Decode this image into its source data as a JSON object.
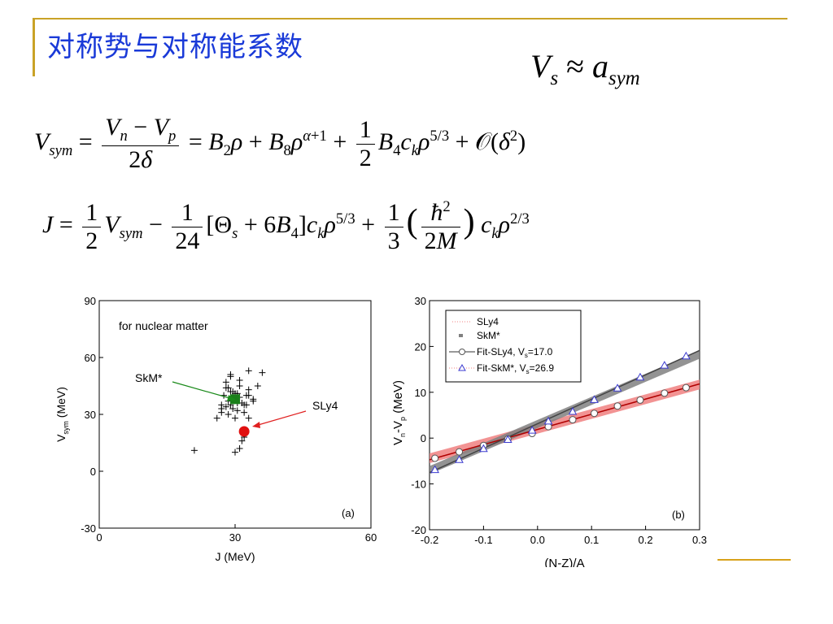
{
  "slide": {
    "title": "对称势与对称能系数"
  },
  "equations": {
    "vs_approx": "Vs ≈ asym",
    "vsym": "Vsym = (Vn − Vp)/2δ = B2ρ + B8ρ^(α+1) + ½B4ckρ^(5/3) + O(δ²)",
    "j": "J = ½Vsym − (1/24)[Θs + 6B4]ckρ^(5/3) + ⅓(ħ²/2M)ckρ^(2/3)"
  },
  "chart_data": [
    {
      "type": "scatter",
      "panel_label": "(a)",
      "annotation": "for nuclear matter",
      "xlabel": "J (MeV)",
      "ylabel": "Vsym (MeV)",
      "xlim": [
        0,
        60
      ],
      "ylim": [
        -30,
        90
      ],
      "xticks": [
        0,
        30,
        60
      ],
      "yticks": [
        -30,
        0,
        30,
        60,
        90
      ],
      "series": [
        {
          "marker": "cross",
          "color": "#000000",
          "x": [
            21,
            26,
            27,
            27.5,
            28,
            28,
            28.5,
            29,
            29,
            29.5,
            30,
            30,
            30.5,
            31,
            31,
            31.5,
            32,
            32,
            32.5,
            33,
            33,
            34,
            35,
            36,
            27,
            28.5,
            29.5,
            30.5,
            31.5,
            32.5,
            29,
            30,
            31,
            32,
            33,
            30,
            28,
            27,
            34,
            29,
            31,
            33,
            30.5,
            28.5,
            29.5
          ],
          "y": [
            11,
            28,
            33,
            40,
            44,
            47,
            30,
            35,
            51,
            42,
            10,
            38,
            41,
            48,
            12,
            16,
            18,
            31,
            35,
            43,
            53,
            38,
            45,
            52,
            35,
            37,
            33,
            32,
            36,
            40,
            42,
            41,
            39,
            35,
            40,
            28,
            34,
            31,
            37,
            50,
            45,
            28,
            36,
            44,
            38
          ]
        },
        {
          "name": "SkM*",
          "marker": "square",
          "color": "#1a7f1a",
          "x": [
            30
          ],
          "y": [
            38
          ]
        },
        {
          "name": "SLy4",
          "marker": "circle",
          "color": "#e01010",
          "x": [
            32
          ],
          "y": [
            21
          ]
        }
      ],
      "arrows": [
        {
          "label": "SkM*",
          "color": "#1a8a1a"
        },
        {
          "label": "SLy4",
          "color": "#e02020"
        }
      ]
    },
    {
      "type": "line",
      "panel_label": "(b)",
      "xlabel": "(N-Z)/A",
      "ylabel": "Vn-Vp (MeV)",
      "xlim": [
        -0.2,
        0.3
      ],
      "ylim": [
        -20,
        30
      ],
      "xticks": [
        -0.2,
        -0.1,
        0.0,
        0.1,
        0.2,
        0.3
      ],
      "yticks": [
        -20,
        -10,
        0,
        10,
        20,
        30
      ],
      "legend_position": "top-left",
      "series": [
        {
          "name": "SLy4",
          "color": "#f08080",
          "style": "band",
          "x": [
            -0.2,
            0.3
          ],
          "y": [
            -4.4,
            11.7
          ]
        },
        {
          "name": "SkM*",
          "color": "#808080",
          "style": "band",
          "x": [
            -0.2,
            0.3
          ],
          "y": [
            -7.0,
            18.2
          ]
        },
        {
          "name": "Fit-SLy4, Vs=17.0",
          "color": "#555555",
          "line_color": "#b00000",
          "marker": "open-circle",
          "x": [
            -0.19,
            -0.145,
            -0.1,
            -0.055,
            -0.01,
            0.02,
            0.065,
            0.105,
            0.148,
            0.19,
            0.235,
            0.275
          ],
          "y": [
            -4.4,
            -3.0,
            -1.6,
            -0.2,
            1.0,
            2.5,
            4.0,
            5.4,
            7.0,
            8.3,
            9.8,
            11.0
          ]
        },
        {
          "name": "Fit-SkM*, Vs=26.9",
          "color": "#3a3ad0",
          "line_color": "#444444",
          "marker": "open-triangle",
          "x": [
            -0.19,
            -0.145,
            -0.1,
            -0.055,
            -0.01,
            0.02,
            0.065,
            0.105,
            0.148,
            0.19,
            0.235,
            0.275
          ],
          "y": [
            -7.0,
            -4.8,
            -2.4,
            -0.4,
            1.6,
            3.6,
            5.7,
            8.3,
            10.8,
            13.2,
            15.8,
            17.8
          ]
        }
      ],
      "legend": [
        {
          "label": "SLy4"
        },
        {
          "label": "SkM*"
        },
        {
          "label": "Fit-SLy4, V",
          "sub": "s",
          "tail": "=17.0"
        },
        {
          "label": "Fit-SkM*, V",
          "sub": "s",
          "tail": "=26.9"
        }
      ]
    }
  ]
}
